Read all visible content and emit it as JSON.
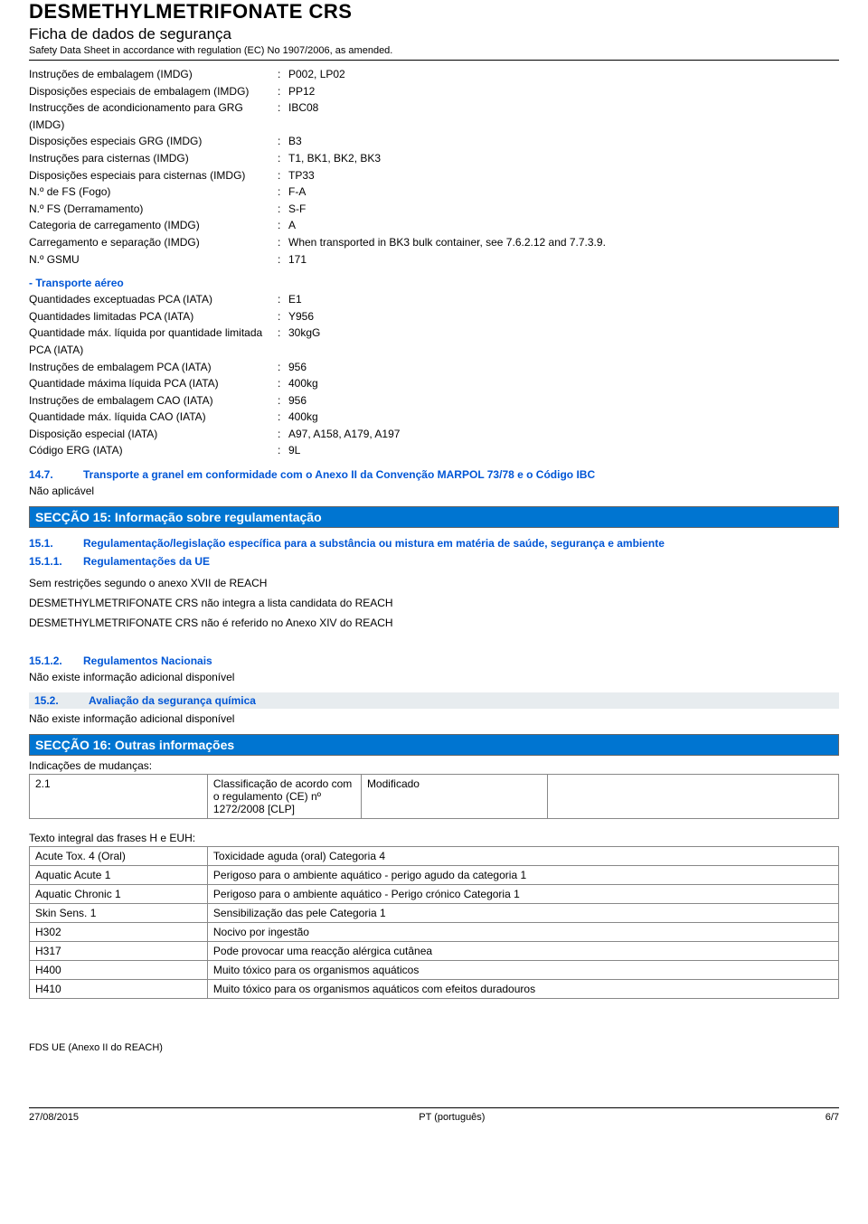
{
  "header": {
    "title": "DESMETHYLMETRIFONATE CRS",
    "subtitle": "Ficha de dados de segurança",
    "note": "Safety Data Sheet in accordance with regulation (EC) No 1907/2006, as amended."
  },
  "imdg": [
    {
      "label": "Instruções de embalagem  (IMDG)",
      "value": "P002, LP02"
    },
    {
      "label": "Disposições especiais de embalagem (IMDG)",
      "value": "PP12"
    },
    {
      "label": "Instrucções de acondicionamento para GRG (IMDG)",
      "value": "IBC08"
    },
    {
      "label": "Disposições especiais GRG (IMDG)",
      "value": "B3"
    },
    {
      "label": "Instruções para cisternas (IMDG)",
      "value": "T1, BK1, BK2, BK3"
    },
    {
      "label": "Disposições especiais para cisternas (IMDG)",
      "value": "TP33"
    },
    {
      "label": "N.º de FS (Fogo)",
      "value": "F-A"
    },
    {
      "label": "N.º FS (Derramamento)",
      "value": "S-F"
    },
    {
      "label": "Categoria de carregamento (IMDG)",
      "value": "A"
    },
    {
      "label": "Carregamento e separação (IMDG)",
      "value": "When transported in BK3 bulk container, see 7.6.2.12 and 7.7.3.9."
    },
    {
      "label": "N.º GSMU",
      "value": "171"
    }
  ],
  "iata_heading": "- Transporte aéreo",
  "iata": [
    {
      "label": "Quantidades exceptuadas PCA (IATA)",
      "value": "E1"
    },
    {
      "label": "Quantidades limitadas PCA (IATA)",
      "value": "Y956"
    },
    {
      "label": "Quantidade máx. líquida por quantidade limitada PCA (IATA)",
      "value": "30kgG"
    },
    {
      "label": "Instruções de embalagem PCA (IATA)",
      "value": "956"
    },
    {
      "label": "Quantidade máxima líquida PCA (IATA)",
      "value": "400kg"
    },
    {
      "label": "Instruções de embalagem CAO (IATA)",
      "value": "956"
    },
    {
      "label": "Quantidade máx. líquida CAO (IATA)",
      "value": "400kg"
    },
    {
      "label": "Disposição especial (IATA)",
      "value": "A97, A158, A179, A197"
    },
    {
      "label": "Código ERG (IATA)",
      "value": "9L"
    }
  ],
  "s14_7": {
    "num": "14.7.",
    "txt": "Transporte a granel em conformidade com o Anexo II da Convenção MARPOL 73/78 e o Código IBC",
    "body": "Não aplicável"
  },
  "s15": {
    "bar": "SECÇÃO 15: Informação sobre regulamentação",
    "r1": {
      "num": "15.1.",
      "txt": "Regulamentação/legislação específica para a substância ou mistura em matéria de saúde, segurança e ambiente"
    },
    "r11": {
      "num": "15.1.1.",
      "txt": "Regulamentações da UE"
    },
    "body1": "Sem restrições segundo o anexo XVII de REACH",
    "body2": "DESMETHYLMETRIFONATE CRS não integra a lista candidata do REACH",
    "body3": "DESMETHYLMETRIFONATE CRS não é referido no Anexo XIV do REACH",
    "r12": {
      "num": "15.1.2.",
      "txt": "Regulamentos Nacionais"
    },
    "body4": "Não existe informação adicional disponível",
    "r2": {
      "num": "15.2.",
      "txt": "Avaliação da segurança química"
    },
    "body5": "Não existe informação adicional disponível"
  },
  "s16": {
    "bar": "SECÇÃO 16: Outras informações",
    "changes_label": "Indicações de mudanças:",
    "changes_table": {
      "c1": "2.1",
      "c2": "Classificação de acordo com o regulamento (CE) nº 1272/2008 [CLP]",
      "c3": "Modificado",
      "c4": ""
    },
    "h_label": "Texto integral das frases H e EUH:",
    "h_rows": [
      {
        "k": "Acute Tox. 4 (Oral)",
        "v": "Toxicidade aguda (oral) Categoria 4"
      },
      {
        "k": "Aquatic Acute 1",
        "v": "Perigoso para o ambiente aquático - perigo agudo da categoria 1"
      },
      {
        "k": "Aquatic Chronic 1",
        "v": "Perigoso para o ambiente aquático - Perigo crónico Categoria 1"
      },
      {
        "k": "Skin Sens. 1",
        "v": "Sensibilização das pele Categoria 1"
      },
      {
        "k": "H302",
        "v": "Nocivo por ingestão"
      },
      {
        "k": "H317",
        "v": "Pode provocar uma reacção alérgica cutânea"
      },
      {
        "k": "H400",
        "v": "Muito tóxico para os organismos aquáticos"
      },
      {
        "k": "H410",
        "v": "Muito tóxico para os organismos aquáticos com efeitos duradouros"
      }
    ]
  },
  "footer_note": "FDS UE (Anexo II do REACH)",
  "page_footer": {
    "left": "27/08/2015",
    "center": "PT (português)",
    "right": "6/7"
  }
}
